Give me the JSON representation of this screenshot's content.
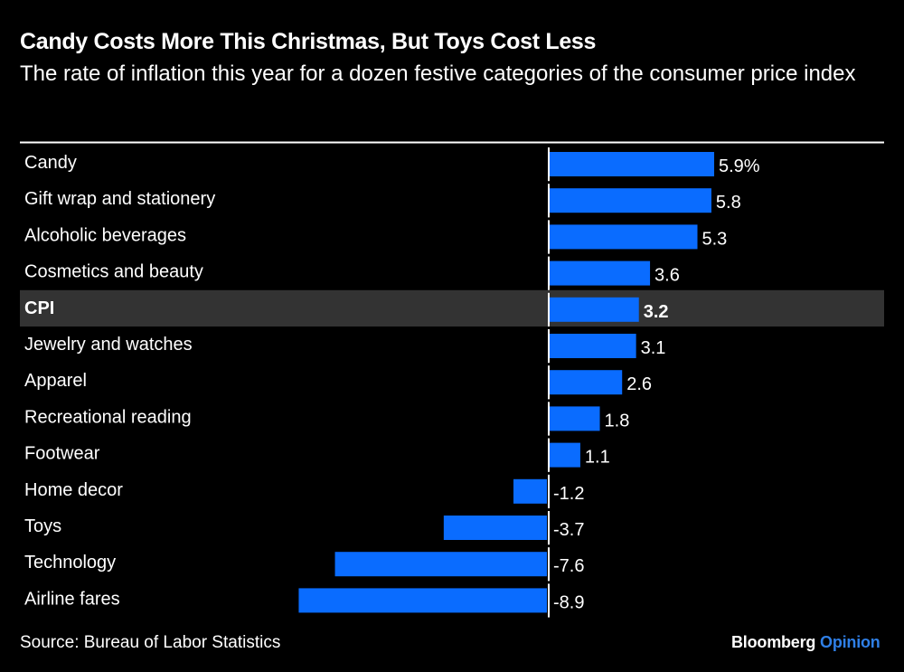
{
  "chart_data": {
    "type": "bar",
    "orientation": "horizontal",
    "title": "Candy Costs More This Christmas, But Toys Cost Less",
    "subtitle": "The rate of inflation this year for a dozen festive categories of the consumer price index",
    "categories": [
      "Candy",
      "Gift wrap and stationery",
      "Alcoholic beverages",
      "Cosmetics and beauty",
      "CPI",
      "Jewelry and watches",
      "Apparel",
      "Recreational reading",
      "Footwear",
      "Home decor",
      "Toys",
      "Technology",
      "Airline fares"
    ],
    "values": [
      5.9,
      5.8,
      5.3,
      3.6,
      3.2,
      3.1,
      2.6,
      1.8,
      1.1,
      -1.2,
      -3.7,
      -7.6,
      -8.9
    ],
    "value_labels": [
      "5.9%",
      "5.8",
      "5.3",
      "3.6",
      "3.2",
      "3.1",
      "2.6",
      "1.8",
      "1.1",
      "-1.2",
      "-3.7",
      "-7.6",
      "-8.9"
    ],
    "highlighted_category": "CPI",
    "unit": "%",
    "xlim": [
      -8.9,
      5.9
    ],
    "grid": false,
    "legend": "none",
    "colors": {
      "bar": "#0a6cff",
      "highlight_row": "#333333",
      "background": "#000000",
      "text": "#ffffff"
    }
  },
  "footer": {
    "source": "Source: Bureau of Labor Statistics",
    "logo_brand": "Bloomberg",
    "logo_section": "Opinion",
    "logo_section_color": "#2f7fe6"
  }
}
